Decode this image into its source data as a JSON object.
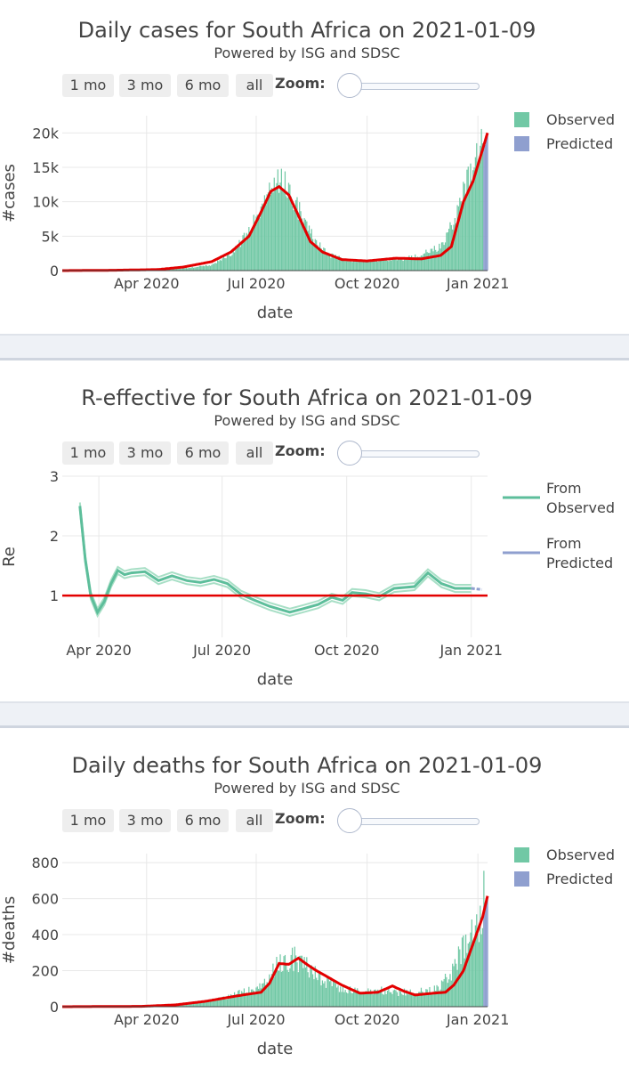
{
  "range_buttons": [
    "1 mo",
    "3 mo",
    "6 mo",
    "all"
  ],
  "zoom_label": "Zoom:",
  "subtitle": "Powered by ISG and SDSC",
  "colors": {
    "observed": "#71c8a5",
    "predicted": "#8f9fcf",
    "fit": "#e30000",
    "re_line": "#5dbe9b",
    "re_pred": "#8f9fcf"
  },
  "chart_data": [
    {
      "type": "bar",
      "title": "Daily cases for South Africa on 2021-01-09",
      "xlabel": "date",
      "ylabel": "#cases",
      "ylim": [
        0,
        22500
      ],
      "yticks": [
        0,
        5000,
        10000,
        15000,
        20000
      ],
      "ytick_labels": [
        "0",
        "5k",
        "10k",
        "15k",
        "20k"
      ],
      "xticks": [
        "Apr 2020",
        "Jul 2020",
        "Oct 2020",
        "Jan 2021"
      ],
      "xrange": [
        "2020-01-22",
        "2021-01-09"
      ],
      "legend": [
        "Observed",
        "Predicted"
      ],
      "series": [
        {
          "name": "Observed",
          "type": "bar",
          "x_start": "2020-03-05",
          "points": [
            [
              "2020-03-05",
              0
            ],
            [
              "2020-04-05",
              100
            ],
            [
              "2020-05-01",
              300
            ],
            [
              "2020-05-25",
              800
            ],
            [
              "2020-06-10",
              2500
            ],
            [
              "2020-06-25",
              5500
            ],
            [
              "2020-07-05",
              9500
            ],
            [
              "2020-07-15",
              12500
            ],
            [
              "2020-07-25",
              12800
            ],
            [
              "2020-08-01",
              10500
            ],
            [
              "2020-08-10",
              7000
            ],
            [
              "2020-08-20",
              4000
            ],
            [
              "2020-09-01",
              2200
            ],
            [
              "2020-09-15",
              1500
            ],
            [
              "2020-10-01",
              1300
            ],
            [
              "2020-10-15",
              1600
            ],
            [
              "2020-11-01",
              1700
            ],
            [
              "2020-11-15",
              2300
            ],
            [
              "2020-12-01",
              3500
            ],
            [
              "2020-12-10",
              6500
            ],
            [
              "2020-12-20",
              11000
            ],
            [
              "2020-12-28",
              15000
            ],
            [
              "2021-01-03",
              18000
            ],
            [
              "2021-01-06",
              21500
            ]
          ]
        },
        {
          "name": "Predicted",
          "type": "bar",
          "points": [
            [
              "2021-01-06",
              17500
            ],
            [
              "2021-01-09",
              19800
            ]
          ]
        },
        {
          "name": "fit",
          "type": "line",
          "points": [
            [
              "2020-01-22",
              0
            ],
            [
              "2020-03-05",
              50
            ],
            [
              "2020-04-10",
              150
            ],
            [
              "2020-05-01",
              500
            ],
            [
              "2020-05-25",
              1300
            ],
            [
              "2020-06-10",
              2700
            ],
            [
              "2020-06-25",
              5000
            ],
            [
              "2020-07-05",
              8500
            ],
            [
              "2020-07-13",
              11500
            ],
            [
              "2020-07-20",
              12200
            ],
            [
              "2020-07-28",
              11000
            ],
            [
              "2020-08-05",
              8000
            ],
            [
              "2020-08-15",
              4200
            ],
            [
              "2020-08-25",
              2700
            ],
            [
              "2020-09-10",
              1600
            ],
            [
              "2020-10-01",
              1400
            ],
            [
              "2020-10-25",
              1800
            ],
            [
              "2020-11-15",
              1700
            ],
            [
              "2020-12-01",
              2200
            ],
            [
              "2020-12-10",
              3500
            ],
            [
              "2020-12-20",
              10000
            ],
            [
              "2020-12-28",
              13000
            ],
            [
              "2021-01-03",
              16500
            ],
            [
              "2021-01-09",
              20000
            ]
          ]
        }
      ]
    },
    {
      "type": "line",
      "title": "R-effective for South Africa on 2021-01-09",
      "xlabel": "date",
      "ylabel": "Re",
      "ylim": [
        0.3,
        3.0
      ],
      "yticks": [
        1,
        2,
        3
      ],
      "ytick_labels": [
        "1",
        "2",
        "3"
      ],
      "xticks": [
        "Apr 2020",
        "Jul 2020",
        "Oct 2020",
        "Jan 2021"
      ],
      "xrange": [
        "2020-03-05",
        "2021-01-13"
      ],
      "legend": [
        "From Observed",
        "From Predicted"
      ],
      "series": [
        {
          "name": "From Observed",
          "points": [
            [
              "2020-03-18",
              2.5
            ],
            [
              "2020-03-22",
              1.6
            ],
            [
              "2020-03-26",
              1.0
            ],
            [
              "2020-03-31",
              0.72
            ],
            [
              "2020-04-05",
              0.9
            ],
            [
              "2020-04-10",
              1.2
            ],
            [
              "2020-04-15",
              1.42
            ],
            [
              "2020-04-20",
              1.35
            ],
            [
              "2020-04-25",
              1.38
            ],
            [
              "2020-05-05",
              1.4
            ],
            [
              "2020-05-15",
              1.25
            ],
            [
              "2020-05-25",
              1.33
            ],
            [
              "2020-06-05",
              1.25
            ],
            [
              "2020-06-15",
              1.22
            ],
            [
              "2020-06-25",
              1.27
            ],
            [
              "2020-07-05",
              1.2
            ],
            [
              "2020-07-15",
              1.02
            ],
            [
              "2020-07-25",
              0.92
            ],
            [
              "2020-08-05",
              0.82
            ],
            [
              "2020-08-20",
              0.72
            ],
            [
              "2020-08-30",
              0.78
            ],
            [
              "2020-09-10",
              0.85
            ],
            [
              "2020-09-20",
              0.97
            ],
            [
              "2020-09-28",
              0.92
            ],
            [
              "2020-10-05",
              1.05
            ],
            [
              "2020-10-15",
              1.03
            ],
            [
              "2020-10-25",
              0.98
            ],
            [
              "2020-11-05",
              1.12
            ],
            [
              "2020-11-20",
              1.15
            ],
            [
              "2020-11-30",
              1.38
            ],
            [
              "2020-12-10",
              1.2
            ],
            [
              "2020-12-20",
              1.12
            ],
            [
              "2021-01-01",
              1.12
            ]
          ]
        },
        {
          "name": "From Predicted",
          "points": [
            [
              "2021-01-01",
              1.12
            ],
            [
              "2021-01-09",
              1.1
            ]
          ]
        },
        {
          "name": "threshold",
          "points": [
            [
              "2020-03-05",
              1.0
            ],
            [
              "2021-01-13",
              1.0
            ]
          ]
        }
      ]
    },
    {
      "type": "bar",
      "title": "Daily deaths for South Africa on 2021-01-09",
      "xlabel": "date",
      "ylabel": "#deaths",
      "ylim": [
        0,
        850
      ],
      "yticks": [
        0,
        200,
        400,
        600,
        800
      ],
      "ytick_labels": [
        "0",
        "200",
        "400",
        "600",
        "800"
      ],
      "xticks": [
        "Apr 2020",
        "Jul 2020",
        "Oct 2020",
        "Jan 2021"
      ],
      "xrange": [
        "2020-01-22",
        "2021-01-09"
      ],
      "legend": [
        "Observed",
        "Predicted"
      ],
      "series": [
        {
          "name": "Observed",
          "type": "bar",
          "x_start": "2020-03-28",
          "points": [
            [
              "2020-03-28",
              0
            ],
            [
              "2020-05-01",
              10
            ],
            [
              "2020-05-20",
              30
            ],
            [
              "2020-06-10",
              60
            ],
            [
              "2020-06-25",
              90
            ],
            [
              "2020-07-10",
              140
            ],
            [
              "2020-07-20",
              240
            ],
            [
              "2020-08-01",
              270
            ],
            [
              "2020-08-10",
              230
            ],
            [
              "2020-08-25",
              150
            ],
            [
              "2020-09-10",
              100
            ],
            [
              "2020-09-25",
              80
            ],
            [
              "2020-10-10",
              90
            ],
            [
              "2020-10-25",
              80
            ],
            [
              "2020-11-10",
              80
            ],
            [
              "2020-11-25",
              90
            ],
            [
              "2020-12-05",
              150
            ],
            [
              "2020-12-15",
              250
            ],
            [
              "2020-12-25",
              380
            ],
            [
              "2021-01-03",
              500
            ],
            [
              "2021-01-06",
              620
            ]
          ]
        },
        {
          "name": "Predicted",
          "type": "bar",
          "points": [
            [
              "2021-01-06",
              560
            ],
            [
              "2021-01-09",
              610
            ]
          ]
        },
        {
          "name": "fit",
          "type": "line",
          "points": [
            [
              "2020-01-22",
              0
            ],
            [
              "2020-03-28",
              2
            ],
            [
              "2020-04-25",
              10
            ],
            [
              "2020-05-20",
              30
            ],
            [
              "2020-06-15",
              60
            ],
            [
              "2020-07-05",
              80
            ],
            [
              "2020-07-12",
              130
            ],
            [
              "2020-07-20",
              240
            ],
            [
              "2020-07-28",
              235
            ],
            [
              "2020-08-05",
              270
            ],
            [
              "2020-08-12",
              235
            ],
            [
              "2020-08-20",
              200
            ],
            [
              "2020-08-28",
              170
            ],
            [
              "2020-09-10",
              120
            ],
            [
              "2020-09-25",
              75
            ],
            [
              "2020-10-10",
              80
            ],
            [
              "2020-10-22",
              115
            ],
            [
              "2020-11-01",
              85
            ],
            [
              "2020-11-10",
              65
            ],
            [
              "2020-11-25",
              75
            ],
            [
              "2020-12-05",
              80
            ],
            [
              "2020-12-12",
              120
            ],
            [
              "2020-12-20",
              200
            ],
            [
              "2020-12-28",
              350
            ],
            [
              "2021-01-05",
              500
            ],
            [
              "2021-01-09",
              615
            ]
          ]
        }
      ]
    }
  ]
}
